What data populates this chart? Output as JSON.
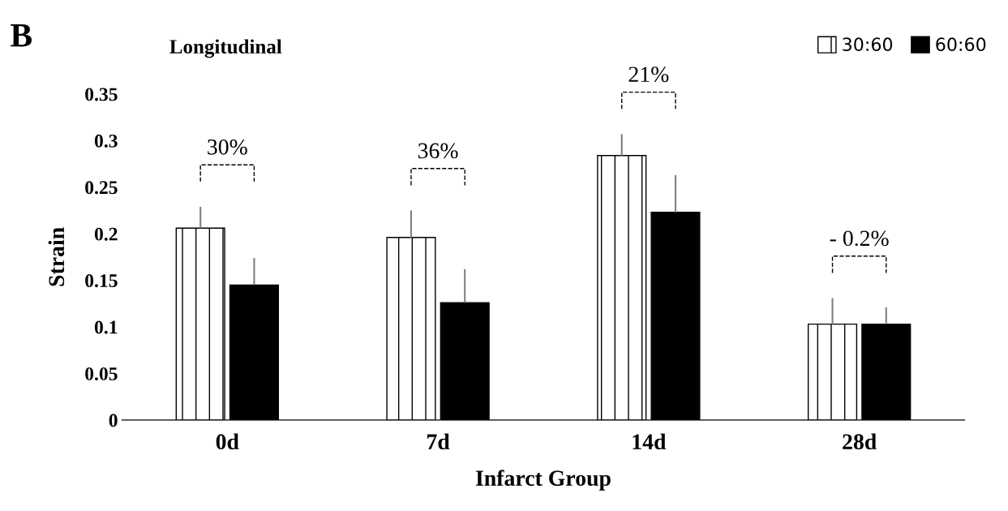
{
  "chart_data": {
    "type": "bar",
    "title": "Longitudinal",
    "xlabel": "Infarct Group",
    "ylabel": "Strain",
    "categories": [
      "0d",
      "7d",
      "14d",
      "28d"
    ],
    "series": [
      {
        "name": "30:60",
        "color": "#ffffff",
        "values": [
          0.206,
          0.196,
          0.284,
          0.103
        ],
        "errors": [
          [
            0.206,
            0.229
          ],
          [
            0.196,
            0.225
          ],
          [
            0.284,
            0.307
          ],
          [
            0.103,
            0.131
          ]
        ]
      },
      {
        "name": "60:60",
        "color": "#000000",
        "values": [
          0.145,
          0.126,
          0.223,
          0.103
        ],
        "errors": [
          [
            0.145,
            0.174
          ],
          [
            0.126,
            0.162
          ],
          [
            0.223,
            0.263
          ],
          [
            0.103,
            0.121
          ]
        ]
      }
    ],
    "ylim": [
      0,
      0.35
    ],
    "yticks": [
      0,
      0.05,
      0.1,
      0.15,
      0.2,
      0.25,
      0.3,
      0.35
    ],
    "grid": false,
    "legend": "top right",
    "annotations": [
      "B",
      "30%",
      "36%",
      "21%",
      "- 0.2%"
    ]
  }
}
